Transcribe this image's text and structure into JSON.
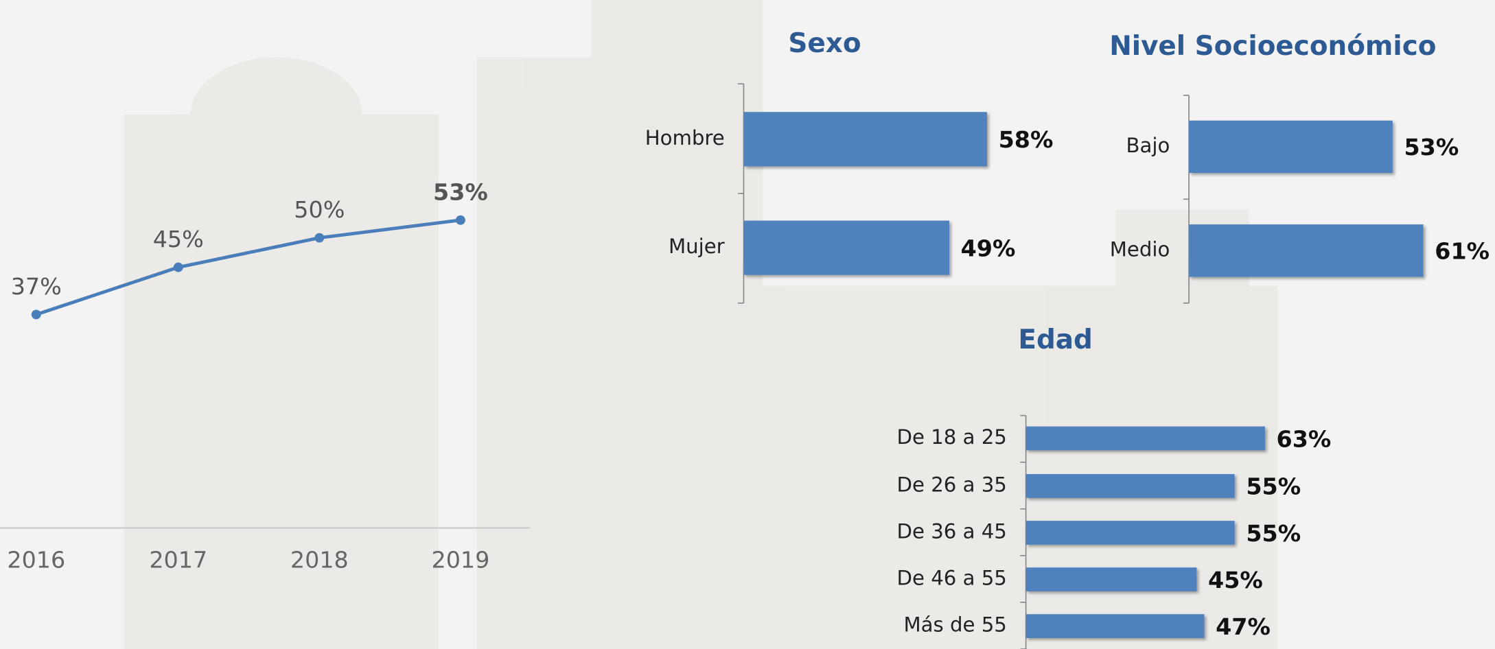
{
  "chart_data": [
    {
      "type": "line",
      "categories": [
        "2016",
        "2017",
        "2018",
        "2019"
      ],
      "values": [
        37,
        45,
        50,
        53
      ],
      "value_labels": [
        "37%",
        "45%",
        "50%",
        "53%"
      ],
      "color": "#4a7ebb"
    },
    {
      "type": "bar",
      "title": "Sexo",
      "categories": [
        "Hombre",
        "Mujer"
      ],
      "values": [
        58,
        49
      ],
      "value_labels": [
        "58%",
        "49%"
      ],
      "color": "#4f81bd"
    },
    {
      "type": "bar",
      "title": "Nivel Socioeconómico",
      "categories": [
        "Bajo",
        "Medio"
      ],
      "values": [
        53,
        61
      ],
      "value_labels": [
        "53%",
        "61%"
      ],
      "color": "#4f81bd"
    },
    {
      "type": "bar",
      "title": "Edad",
      "categories": [
        "De 18 a 25",
        "De 26 a 35",
        "De 36 a 45",
        "De 46 a 55",
        "Más de 55"
      ],
      "values": [
        63,
        55,
        55,
        45,
        47
      ],
      "value_labels": [
        "63%",
        "55%",
        "55%",
        "45%",
        "47%"
      ],
      "color": "#4f81bd"
    }
  ]
}
